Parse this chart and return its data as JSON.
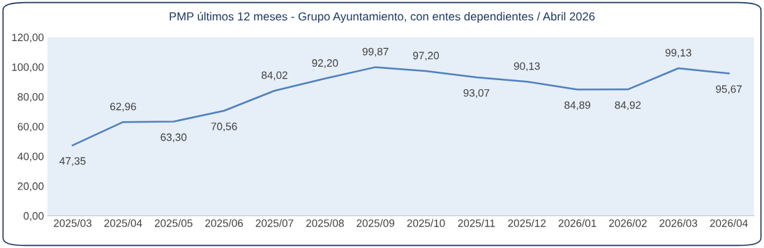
{
  "chart_data": {
    "type": "line",
    "title": "PMP últimos 12 meses - Grupo Ayuntamiento, con entes dependientes / Abril 2026",
    "categories": [
      "2025/03",
      "2025/04",
      "2025/05",
      "2025/06",
      "2025/07",
      "2025/08",
      "2025/09",
      "2025/10",
      "2025/11",
      "2025/12",
      "2026/01",
      "2026/02",
      "2026/03",
      "2026/04"
    ],
    "series": [
      {
        "color": "#4f81bd",
        "values": [
          47.35,
          62.96,
          63.3,
          70.56,
          84.02,
          92.2,
          99.87,
          97.2,
          93.07,
          90.13,
          84.89,
          84.92,
          99.13,
          95.67
        ]
      }
    ],
    "ylim": [
      0,
      120
    ],
    "yticks": [
      {
        "value": 0,
        "label": "0,00"
      },
      {
        "value": 20,
        "label": "20,00"
      },
      {
        "value": 40,
        "label": "40,00"
      },
      {
        "value": 60,
        "label": "60,00"
      },
      {
        "value": 80,
        "label": "80,00"
      },
      {
        "value": 100,
        "label": "100,00"
      },
      {
        "value": 120,
        "label": "120,00"
      }
    ],
    "value_labels": [
      "47,35",
      "62,96",
      "63,30",
      "70,56",
      "84,02",
      "92,20",
      "99,87",
      "97,20",
      "93,07",
      "90,13",
      "84,89",
      "84,92",
      "99,13",
      "95,67"
    ],
    "grid": false,
    "marker": "none",
    "line_style": "solid",
    "legend": false
  }
}
